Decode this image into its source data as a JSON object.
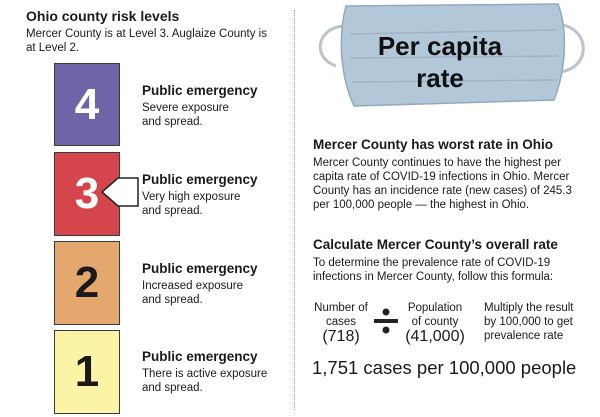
{
  "left": {
    "title": "Ohio county risk levels",
    "subtitle": "Mercer County is at Level 3. Auglaize County is at Level 2.",
    "levels": [
      {
        "number": "4",
        "heading": "Public emergency",
        "line1": "Severe exposure",
        "line2": "and spread.",
        "color": "#6e64a8"
      },
      {
        "number": "3",
        "heading": "Public emergency",
        "line1": "Very high exposure",
        "line2": "and spread.",
        "color": "#d4464c"
      },
      {
        "number": "2",
        "heading": "Public emergency",
        "line1": "Increased exposure",
        "line2": "and spread.",
        "color": "#e4a86e"
      },
      {
        "number": "1",
        "heading": "Public emergency",
        "line1": "There is active exposure",
        "line2": "and spread.",
        "color": "#fbf3a6"
      }
    ]
  },
  "mask": {
    "title_line1": "Per capita",
    "title_line2": "rate",
    "icon": "face-mask-icon"
  },
  "worst": {
    "heading": "Mercer County has worst rate in Ohio",
    "body": "Mercer County continues to have the highest per capita rate of COVID-19 infections in Ohio. Mercer County has an incidence rate (new cases) of 245.3 per 100,000 people — the highest in Ohio."
  },
  "calc": {
    "heading": "Calculate Mercer County’s overall rate",
    "body": "To determine the prevalence rate of COVID-19 infections in Mercer County, follow this formula:",
    "cases_label_1": "Number of",
    "cases_label_2": "cases",
    "cases_value": "(718)",
    "pop_label_1": "Population",
    "pop_label_2": "of county",
    "pop_value": "(41,000)",
    "multiply_1": "Multiply the result",
    "multiply_2": "by 100,000 to get",
    "multiply_3": "prevalence rate",
    "result": "1,751 cases per 100,000 people"
  }
}
